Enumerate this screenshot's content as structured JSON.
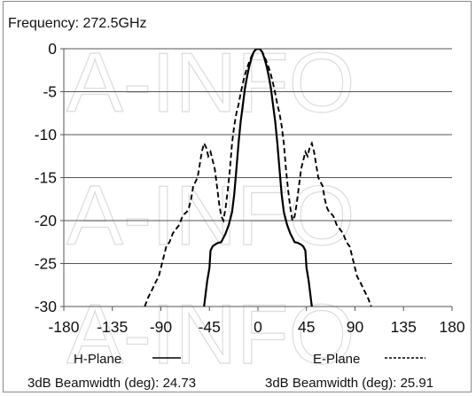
{
  "frequency_label": "Frequency: 272.5GHz",
  "watermark": "A-INFO",
  "chart_data": {
    "type": "line",
    "title": "Frequency: 272.5GHz",
    "xlabel": "",
    "ylabel": "",
    "xlim": [
      -180,
      180
    ],
    "ylim": [
      -30,
      0
    ],
    "xticks": [
      -180,
      -135,
      -90,
      -45,
      0,
      45,
      90,
      135,
      180
    ],
    "yticks": [
      0,
      -5,
      -10,
      -15,
      -20,
      -25,
      -30
    ],
    "grid": "horizontal",
    "series": [
      {
        "name": "H-Plane",
        "style": "solid",
        "color": "#000000",
        "beamwidth_label": "3dB Beamwidth (deg): 24.73",
        "x": [
          -50,
          -47,
          -45,
          -44,
          -42,
          -40,
          -37,
          -34,
          -30,
          -27,
          -24,
          -22,
          -20,
          -18,
          -16,
          -14,
          -12,
          -10,
          -8,
          -6,
          -4,
          -2,
          0,
          2,
          4,
          6,
          8,
          10,
          12,
          14,
          16,
          18,
          20,
          22,
          24,
          27,
          30,
          34,
          37,
          40,
          42,
          44,
          45,
          47,
          50
        ],
        "y": [
          -30,
          -27,
          -25.5,
          -23.5,
          -23,
          -22.8,
          -22.6,
          -22.5,
          -21.5,
          -20.5,
          -19,
          -17,
          -14,
          -11,
          -8.5,
          -6.5,
          -4.6,
          -3.2,
          -2,
          -1.1,
          -0.4,
          -0.05,
          0,
          -0.05,
          -0.4,
          -1.1,
          -2,
          -3.2,
          -4.6,
          -6.5,
          -8.5,
          -11,
          -14,
          -17,
          -19,
          -20.5,
          -21.5,
          -22.5,
          -22.6,
          -22.8,
          -23,
          -23.5,
          -25.5,
          -27,
          -30
        ]
      },
      {
        "name": "E-Plane",
        "style": "dashed",
        "color": "#000000",
        "beamwidth_label": "3dB Beamwidth (deg): 25.91",
        "x": [
          -105,
          -102,
          -98,
          -95,
          -92,
          -90,
          -87,
          -85,
          -82,
          -79,
          -76,
          -73,
          -70,
          -68,
          -66,
          -64,
          -62,
          -60,
          -58,
          -56,
          -54,
          -52,
          -50,
          -48,
          -46,
          -44,
          -42,
          -40,
          -38,
          -36,
          -34,
          -32,
          -30,
          -28,
          -26,
          -24,
          -22,
          -20,
          -18,
          -16,
          -14,
          -12,
          -10,
          -8,
          -6,
          -4,
          -2,
          0,
          2,
          4,
          6,
          8,
          10,
          12,
          14,
          16,
          18,
          20,
          22,
          24,
          26,
          28,
          30,
          32,
          34,
          36,
          38,
          40,
          42,
          44,
          46,
          48,
          50,
          52,
          54,
          56,
          58,
          60,
          62,
          64,
          66,
          68,
          70,
          73,
          76,
          79,
          82,
          85,
          87,
          90,
          92,
          95,
          98,
          102,
          105
        ],
        "y": [
          -30,
          -29,
          -28,
          -27.2,
          -26.5,
          -25.5,
          -24,
          -23,
          -22.5,
          -21.5,
          -21,
          -20.5,
          -19.5,
          -19.2,
          -19,
          -18.5,
          -17.5,
          -16,
          -15.5,
          -15,
          -13.5,
          -12,
          -11,
          -11.5,
          -12.5,
          -12,
          -13,
          -14,
          -16,
          -18,
          -19.5,
          -20,
          -18.5,
          -16.5,
          -14,
          -11,
          -9,
          -7.5,
          -6.5,
          -5.2,
          -4,
          -3,
          -2.2,
          -1.5,
          -0.9,
          -0.4,
          -0.1,
          0,
          -0.1,
          -0.4,
          -0.9,
          -1.5,
          -2.2,
          -3,
          -4,
          -5.2,
          -6.5,
          -7.5,
          -9,
          -11,
          -14,
          -16.5,
          -18.5,
          -20,
          -19.5,
          -18,
          -16,
          -14,
          -13,
          -12,
          -12.5,
          -11.5,
          -11,
          -12,
          -13.5,
          -15,
          -15.5,
          -16,
          -17.5,
          -18.5,
          -19,
          -19.2,
          -19.5,
          -20.5,
          -21,
          -21.5,
          -22.5,
          -23,
          -24,
          -25.5,
          -26.5,
          -27.2,
          -28,
          -29,
          -30
        ]
      }
    ]
  }
}
